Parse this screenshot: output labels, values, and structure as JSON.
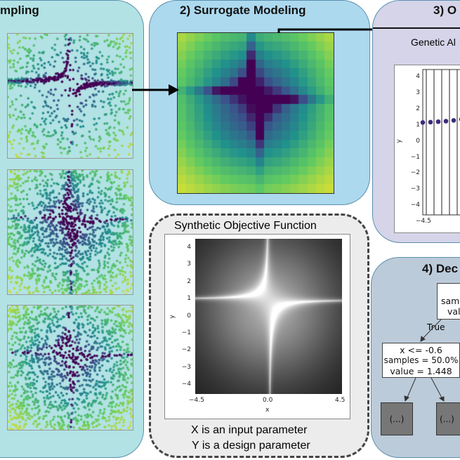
{
  "sampling": {
    "title": "mpling",
    "plots": 3
  },
  "surrogate": {
    "title": "2) Surrogate Modeling",
    "colormap": "viridis"
  },
  "optimization": {
    "title": "3) O",
    "subtitle": "Genetic Al",
    "ylabel": "y",
    "yticks": [
      "4",
      "3",
      "2",
      "1",
      "0",
      "−1",
      "−2",
      "−3",
      "−4"
    ],
    "xtick": "−4.5",
    "point_color": "#3b2a7a"
  },
  "decision_tree": {
    "title": "4) Dec",
    "root_lines": [
      "samp",
      "val"
    ],
    "edge_label": "True",
    "node": {
      "line1": "x <= -0.6",
      "line2": "samples = 50.0%",
      "line3": "value = 1.448"
    },
    "collapsed": [
      "(...)",
      "(...)"
    ]
  },
  "synthetic": {
    "title": "Synthetic Objective Function",
    "xlabel": "x",
    "ylabel": "y",
    "xticks": [
      "−4.5",
      "0.0",
      "4.5"
    ],
    "yticks": [
      "4",
      "3",
      "2",
      "1",
      "0",
      "−1",
      "−2",
      "−3",
      "−4"
    ],
    "caption1": "X is an input parameter",
    "caption2": "Y is a design parameter"
  },
  "colors": {
    "sampling_bg": "#b2e2e4",
    "surrogate_bg": "#acd9ee",
    "optimization_bg": "#d5d4e9",
    "decision_bg": "#bccbd9",
    "synthetic_bg": "#ececec"
  }
}
